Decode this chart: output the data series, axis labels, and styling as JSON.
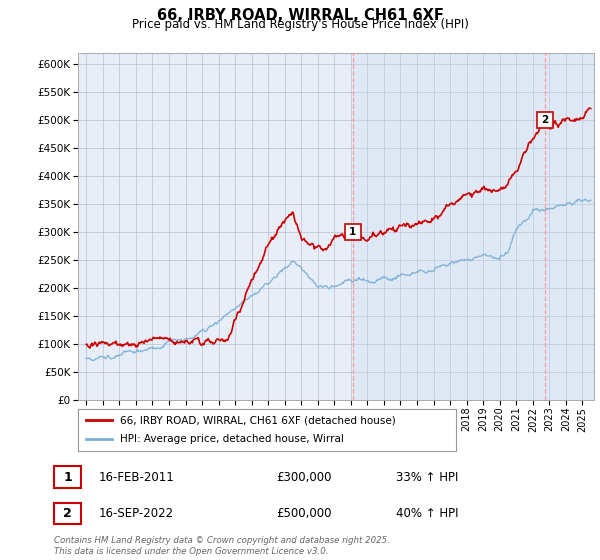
{
  "title": "66, IRBY ROAD, WIRRAL, CH61 6XF",
  "subtitle": "Price paid vs. HM Land Registry's House Price Index (HPI)",
  "ylim": [
    0,
    620000
  ],
  "xlim_start": 1994.5,
  "xlim_end": 2025.7,
  "x_ticks": [
    1995,
    1996,
    1997,
    1998,
    1999,
    2000,
    2001,
    2002,
    2003,
    2004,
    2005,
    2006,
    2007,
    2008,
    2009,
    2010,
    2011,
    2012,
    2013,
    2014,
    2015,
    2016,
    2017,
    2018,
    2019,
    2020,
    2021,
    2022,
    2023,
    2024,
    2025
  ],
  "line1_color": "#cc0000",
  "line2_color": "#7ab0d4",
  "shade_color": "#ddeeff",
  "marker1_x": 2011.12,
  "marker1_y": 300000,
  "marker2_x": 2022.71,
  "marker2_y": 500000,
  "vline_color": "#ff9999",
  "legend_line1": "66, IRBY ROAD, WIRRAL, CH61 6XF (detached house)",
  "legend_line2": "HPI: Average price, detached house, Wirral",
  "annotation1_date": "16-FEB-2011",
  "annotation1_price": "£300,000",
  "annotation1_hpi": "33% ↑ HPI",
  "annotation2_date": "16-SEP-2022",
  "annotation2_price": "£500,000",
  "annotation2_hpi": "40% ↑ HPI",
  "footnote": "Contains HM Land Registry data © Crown copyright and database right 2025.\nThis data is licensed under the Open Government Licence v3.0.",
  "background_color": "#ffffff",
  "chart_bg": "#e8eef8",
  "grid_color": "#c0c8d8",
  "fig_width": 6.0,
  "fig_height": 5.6,
  "dpi": 100
}
